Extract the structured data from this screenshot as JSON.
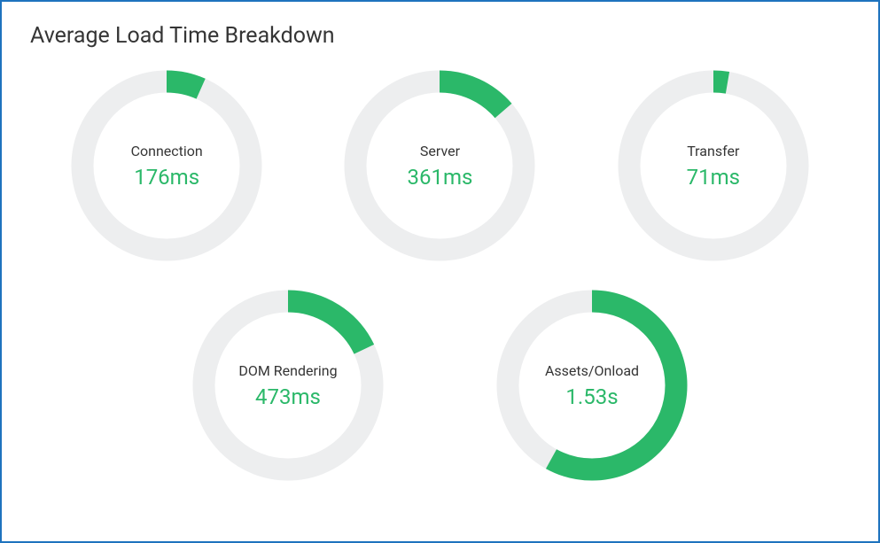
{
  "title": "Average Load Time Breakdown",
  "chart": {
    "type": "donut",
    "ring_width": 25,
    "radius": 95,
    "track_color": "#edeeef",
    "fill_color": "#2bb869",
    "background_color": "#ffffff",
    "label_color": "#353535",
    "value_color": "#2bb869",
    "label_fontsize": 16,
    "value_fontsize": 24
  },
  "metrics": [
    {
      "label": "Connection",
      "value_display": "176ms",
      "percent": 6.67
    },
    {
      "label": "Server",
      "value_display": "361ms",
      "percent": 13.69
    },
    {
      "label": "Transfer",
      "value_display": "71ms",
      "percent": 2.69
    },
    {
      "label": "DOM Rendering",
      "value_display": "473ms",
      "percent": 17.94
    },
    {
      "label": "Assets/Onload",
      "value_display": "1.53s",
      "percent": 58.02
    }
  ]
}
